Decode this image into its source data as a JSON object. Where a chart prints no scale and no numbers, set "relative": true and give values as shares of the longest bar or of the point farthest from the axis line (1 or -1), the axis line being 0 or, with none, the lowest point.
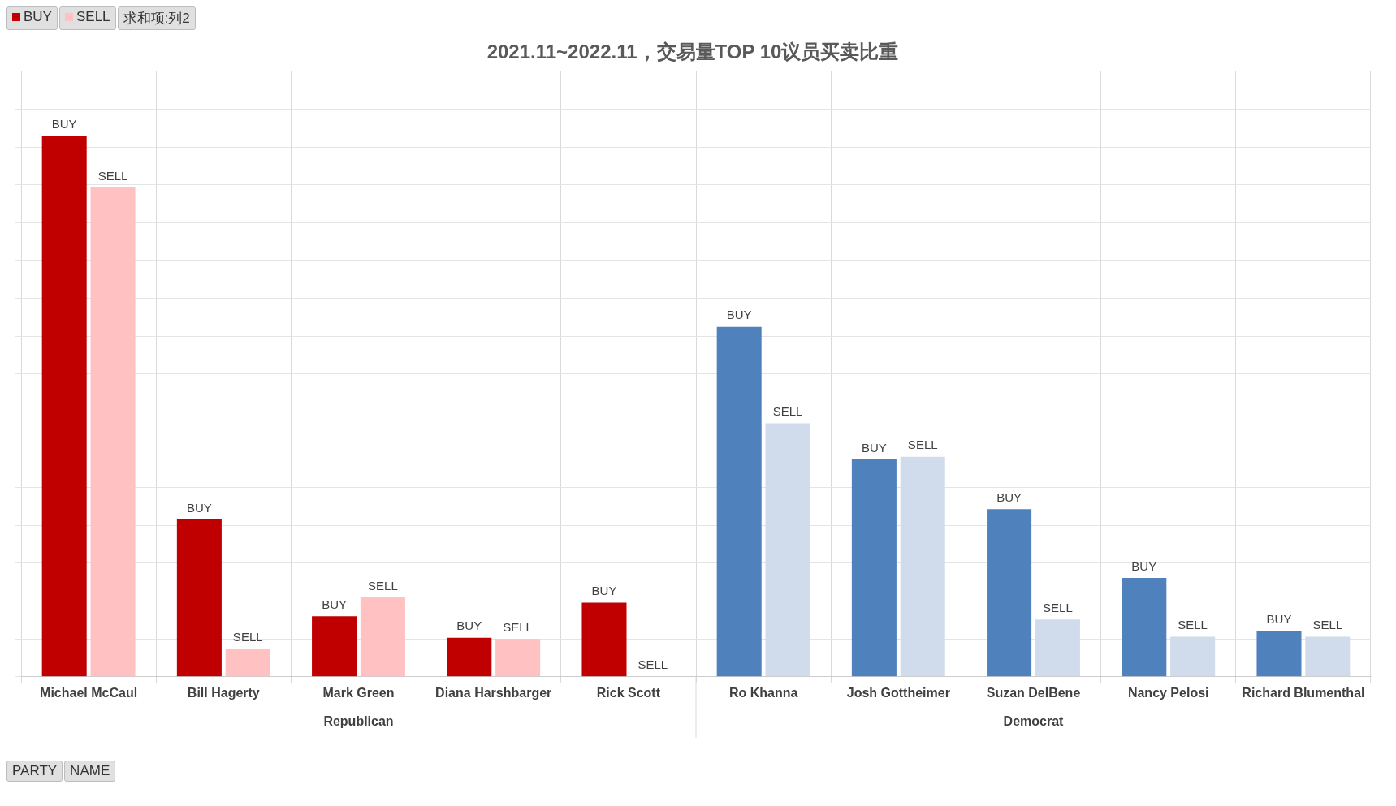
{
  "chart_data": {
    "type": "bar",
    "title": "2021.11~2022.11，交易量TOP 10议员买卖比重",
    "relative": true,
    "grid": true,
    "legend": "top left",
    "categories": [
      "Michael McCaul",
      "Bill Hagerty",
      "Mark Green",
      "Diana Harshbarger",
      "Rick Scott",
      "Ro Khanna",
      "Josh Gottheimer",
      "Suzan DelBene",
      "Nancy Pelosi",
      "Richard Blumenthal"
    ],
    "series": [
      {
        "name": "BUY",
        "colors": [
          "#c00000",
          "#c00000",
          "#c00000",
          "#c00000",
          "#c00000",
          "#4f81bd",
          "#4f81bd",
          "#4f81bd",
          "#4f81bd",
          "#4f81bd"
        ],
        "values": [
          1,
          0.291,
          0.112,
          0.072,
          0.137,
          0.647,
          0.402,
          0.31,
          0.183,
          0.084
        ]
      },
      {
        "name": "SELL",
        "colors": [
          "#ffc1c1",
          "#ffc1c1",
          "#ffc1c1",
          "#ffc1c1",
          "#ffc1c1",
          "#d0dcec",
          "#d0dcec",
          "#d0dcec",
          "#d0dcec",
          "#d0dcec"
        ],
        "values": [
          0.905,
          0.052,
          0.147,
          0.07,
          0,
          0.469,
          0.407,
          0.106,
          0.074,
          0.074
        ]
      }
    ],
    "annotations": [
      "求和项:列2",
      "Republican",
      "Democrat",
      "PARTY",
      "NAME"
    ]
  }
}
